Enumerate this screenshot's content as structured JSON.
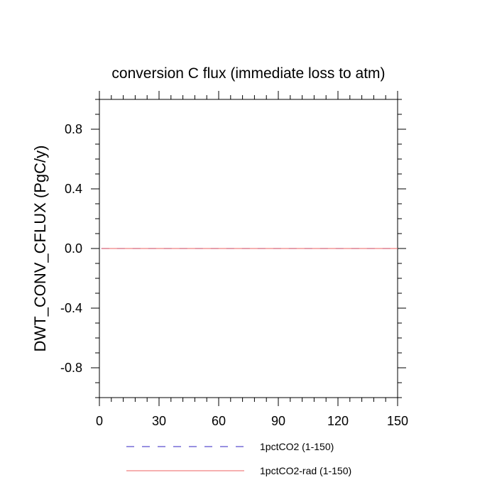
{
  "chart_data": {
    "type": "line",
    "title": "conversion C flux (immediate loss to atm)",
    "xlabel": "",
    "ylabel": "DWT_CONV_CFLUX  (PgC/y)",
    "xlim": [
      0,
      150
    ],
    "ylim": [
      -1,
      1
    ],
    "xticks": [
      0,
      30,
      60,
      90,
      120,
      150
    ],
    "xtick_labels": [
      "0",
      "30",
      "60",
      "90",
      "120",
      "150"
    ],
    "yticks": [
      -0.8,
      -0.4,
      0.0,
      0.4,
      0.8
    ],
    "ytick_labels": [
      "-0.8",
      "-0.4",
      "0.0",
      "0.4",
      "0.8"
    ],
    "grid": false,
    "legend_position": "bottom",
    "series": [
      {
        "name": "1pctCO2 (1-150)",
        "color": "#5a4fcf",
        "dash": "dashed",
        "x": [
          1,
          150
        ],
        "y": [
          0,
          0
        ]
      },
      {
        "name": "1pctCO2-rad (1-150)",
        "color": "#f08080",
        "dash": "solid",
        "x": [
          1,
          150
        ],
        "y": [
          0,
          0
        ]
      }
    ]
  }
}
